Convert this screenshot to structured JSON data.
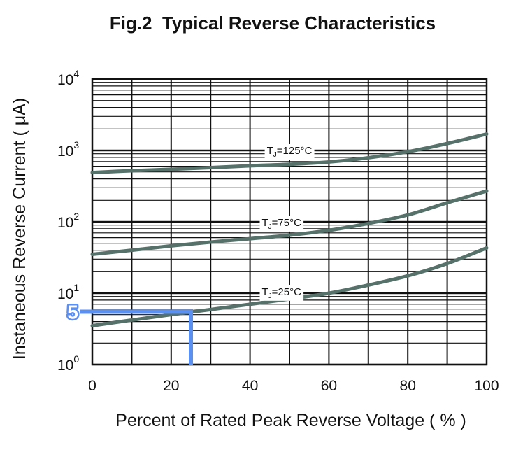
{
  "chart_data": {
    "type": "line",
    "title": "Fig.2  Typical Reverse Characteristics",
    "xlabel": "Percent of Rated Peak Reverse Voltage ( % )",
    "ylabel": "Instaneous Reverse Current ( μA)",
    "xlim": [
      0,
      100
    ],
    "ylim": [
      1,
      10000
    ],
    "yscale": "log",
    "grid": true,
    "x_ticks": [
      "0",
      "20",
      "40",
      "60",
      "80",
      "100"
    ],
    "y_ticks": [
      {
        "base": "10",
        "exp": "0"
      },
      {
        "base": "10",
        "exp": "1"
      },
      {
        "base": "10",
        "exp": "2"
      },
      {
        "base": "10",
        "exp": "3"
      },
      {
        "base": "10",
        "exp": "4"
      }
    ],
    "series": [
      {
        "name": "TJ=125°C",
        "label_main": "T",
        "label_sub": "J",
        "label_rest": "=125°C",
        "label_at": [
          50,
          1000
        ],
        "x": [
          0,
          10,
          20,
          30,
          40,
          50,
          60,
          70,
          80,
          90,
          100
        ],
        "y": [
          490,
          520,
          545,
          575,
          610,
          640,
          690,
          790,
          960,
          1250,
          1700
        ]
      },
      {
        "name": "TJ=75°C",
        "label_main": "T",
        "label_sub": "J",
        "label_rest": "=75°C",
        "label_at": [
          48,
          98
        ],
        "x": [
          0,
          10,
          20,
          30,
          40,
          50,
          60,
          70,
          80,
          90,
          100
        ],
        "y": [
          35,
          40,
          46,
          52,
          58,
          65,
          76,
          95,
          125,
          185,
          270
        ]
      },
      {
        "name": "TJ=25°C",
        "label_main": "T",
        "label_sub": "J",
        "label_rest": "=25°C",
        "label_at": [
          48,
          10.5
        ],
        "x": [
          0,
          10,
          20,
          30,
          40,
          50,
          60,
          70,
          80,
          90,
          100
        ],
        "y": [
          3.5,
          4.2,
          5.0,
          5.9,
          7.0,
          8.3,
          10.0,
          13.0,
          17.5,
          26,
          43
        ]
      }
    ],
    "annotation": {
      "label": "5",
      "x": 25,
      "y": 5.5,
      "color": "#5b8ff0"
    },
    "colors": {
      "curve": "#56706a",
      "grid": "#111111"
    }
  }
}
